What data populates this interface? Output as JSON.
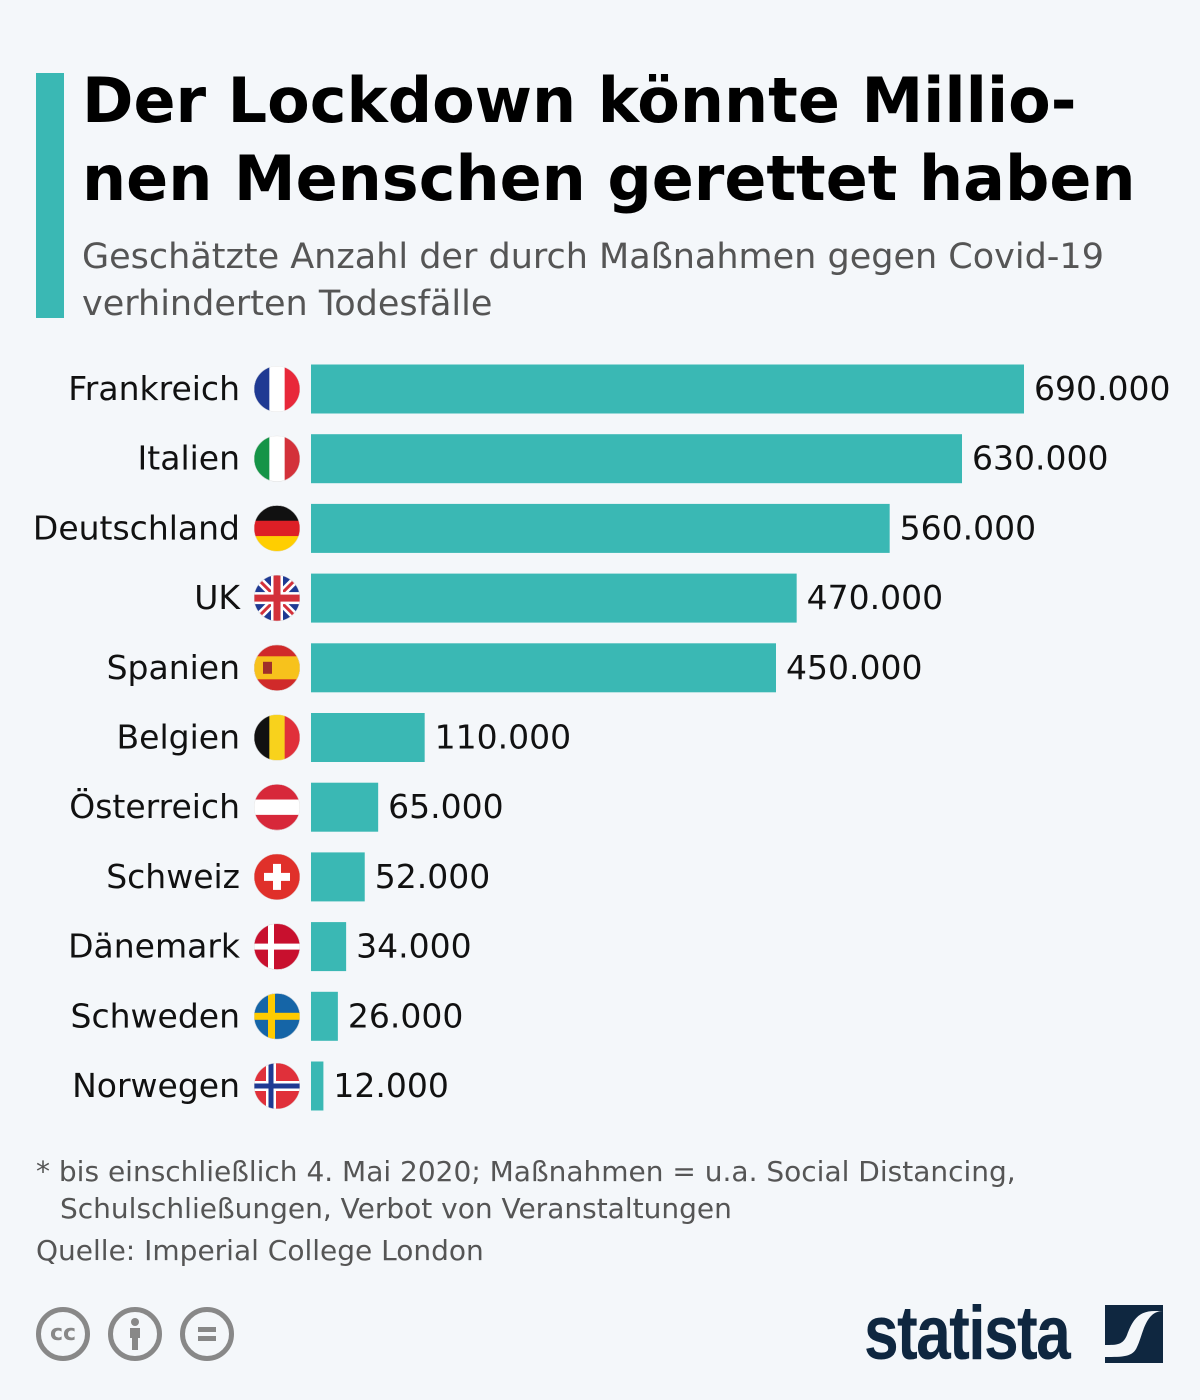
{
  "title": "Der Lockdown könnte Millio-nen Menschen gerettet haben",
  "title_lines": [
    "Der Lockdown könnte Millio-",
    "nen Menschen gerettet haben"
  ],
  "subtitle_lines": [
    "Geschätzte Anzahl der durch Maßnahmen gegen Covid-19",
    "verhinderten Todesfälle"
  ],
  "colors": {
    "bar": "#3ab8b4",
    "accent": "#3ab8b4",
    "brand": "#0f2740",
    "background": "#f4f7fa"
  },
  "chart_data": {
    "type": "bar",
    "orientation": "horizontal",
    "title": "Der Lockdown könnte Millionen Menschen gerettet haben",
    "subtitle": "Geschätzte Anzahl der durch Maßnahmen gegen Covid-19 verhinderten Todesfälle",
    "categories": [
      "Frankreich",
      "Italien",
      "Deutschland",
      "UK",
      "Spanien",
      "Belgien",
      "Österreich",
      "Schweiz",
      "Dänemark",
      "Schweden",
      "Norwegen"
    ],
    "flags": [
      "fr",
      "it",
      "de",
      "uk",
      "es",
      "be",
      "at",
      "ch",
      "dk",
      "se",
      "no"
    ],
    "values": [
      690000,
      630000,
      560000,
      470000,
      450000,
      110000,
      65000,
      52000,
      34000,
      26000,
      12000
    ],
    "value_labels": [
      "690.000",
      "630.000",
      "560.000",
      "470.000",
      "450.000",
      "110.000",
      "65.000",
      "52.000",
      "34.000",
      "26.000",
      "12.000"
    ],
    "xlim": [
      0,
      690000
    ],
    "grid": false,
    "legend": "none"
  },
  "footer": {
    "note_line1": "* bis einschließlich 4. Mai 2020; Maßnahmen = u.a. Social Distancing,",
    "note_line2": "Schulschließungen, Verbot von Veranstaltungen",
    "source": "Quelle: Imperial College London",
    "license_icons": [
      "cc-icon",
      "by-icon",
      "nd-icon"
    ],
    "cc_text": "cc",
    "brand": "statista"
  }
}
